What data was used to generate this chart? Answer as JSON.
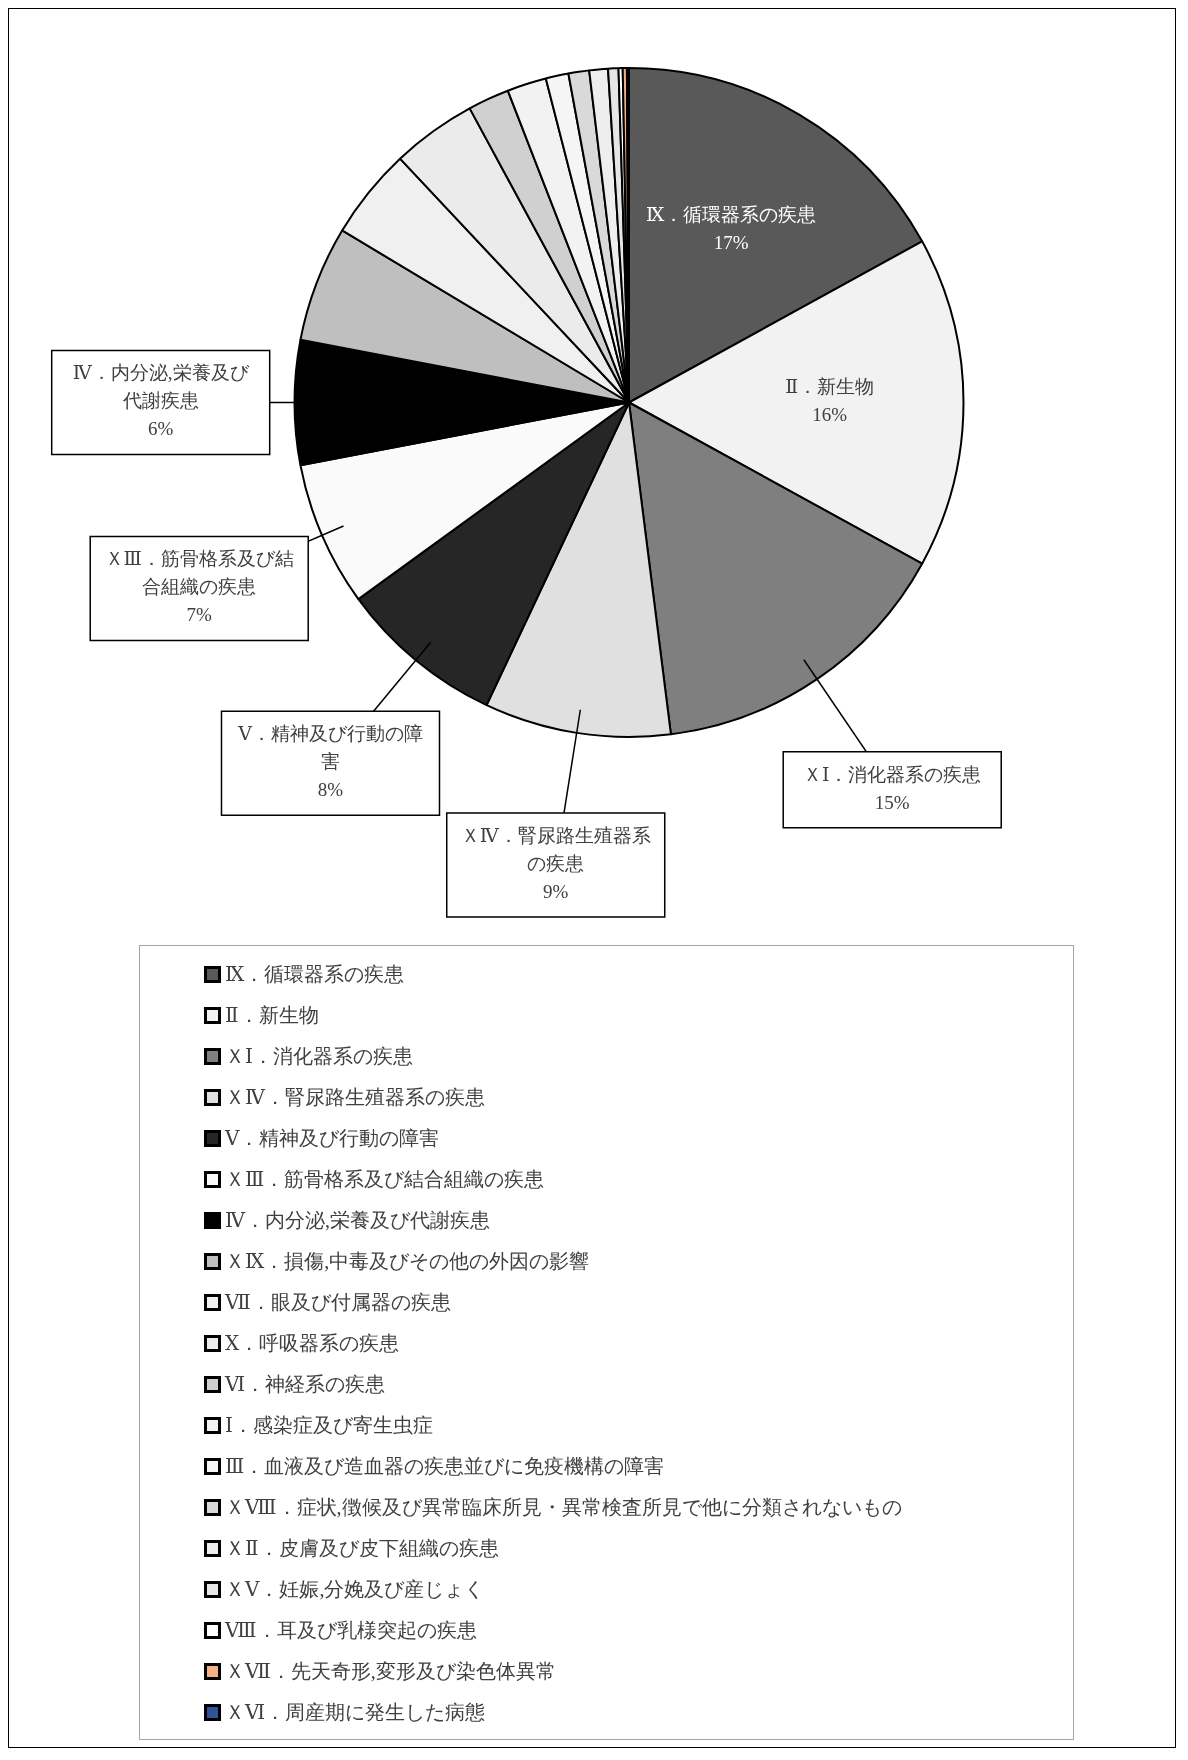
{
  "chart_data": {
    "type": "pie",
    "categories": [
      "Ⅸ．循環器系の疾患",
      "Ⅱ．新生物",
      "ＸⅠ．消化器系の疾患",
      "ＸⅣ．腎尿路生殖器系の疾患",
      "Ⅴ．精神及び行動の障害",
      "ＸⅢ．筋骨格系及び結合組織の疾患",
      "Ⅳ．内分泌,栄養及び代謝疾患",
      "ＸⅨ．損傷,中毒及びその他の外因の影響",
      "Ⅶ．眼及び付属器の疾患",
      "Ⅹ．呼吸器系の疾患",
      "Ⅵ．神経系の疾患",
      "Ⅰ．感染症及び寄生虫症",
      "Ⅲ．血液及び造血器の疾患並びに免疫機構の障害",
      "ＸⅧ．症状,徴候及び異常臨床所見・異常検査所見で他に分類されないもの",
      "ＸⅡ．皮膚及び皮下組織の疾患",
      "ＸⅤ．妊娠,分娩及び産じょく",
      "Ⅷ．耳及び乳様突起の疾患",
      "ＸⅦ．先天奇形,変形及び染色体異常",
      "ＸⅥ．周産期に発生した病態"
    ],
    "values": [
      17,
      16,
      15,
      9,
      8,
      7,
      6,
      5.6,
      4.4,
      4.1,
      2,
      1.9,
      1.1,
      1,
      0.9,
      0.5,
      0.2,
      0.2,
      0.1
    ],
    "value_labels": [
      "17%",
      "16%",
      "15%",
      "9%",
      "8%",
      "7%",
      "6%",
      null,
      null,
      null,
      null,
      null,
      null,
      null,
      null,
      null,
      null,
      null,
      null
    ],
    "colors": [
      "#595959",
      "#f2f2f2",
      "#7f7f7f",
      "#e0e0e0",
      "#262626",
      "#fafafa",
      "#000000",
      "#bfbfbf",
      "#f0f0f0",
      "#ebebeb",
      "#d0d0d0",
      "#f2f2f2",
      "#f5f5f5",
      "#d9d9d9",
      "#eeeeee",
      "#e6e6e6",
      "#ffffff",
      "#f4b183",
      "#2f5597"
    ],
    "legend": "bottom"
  }
}
